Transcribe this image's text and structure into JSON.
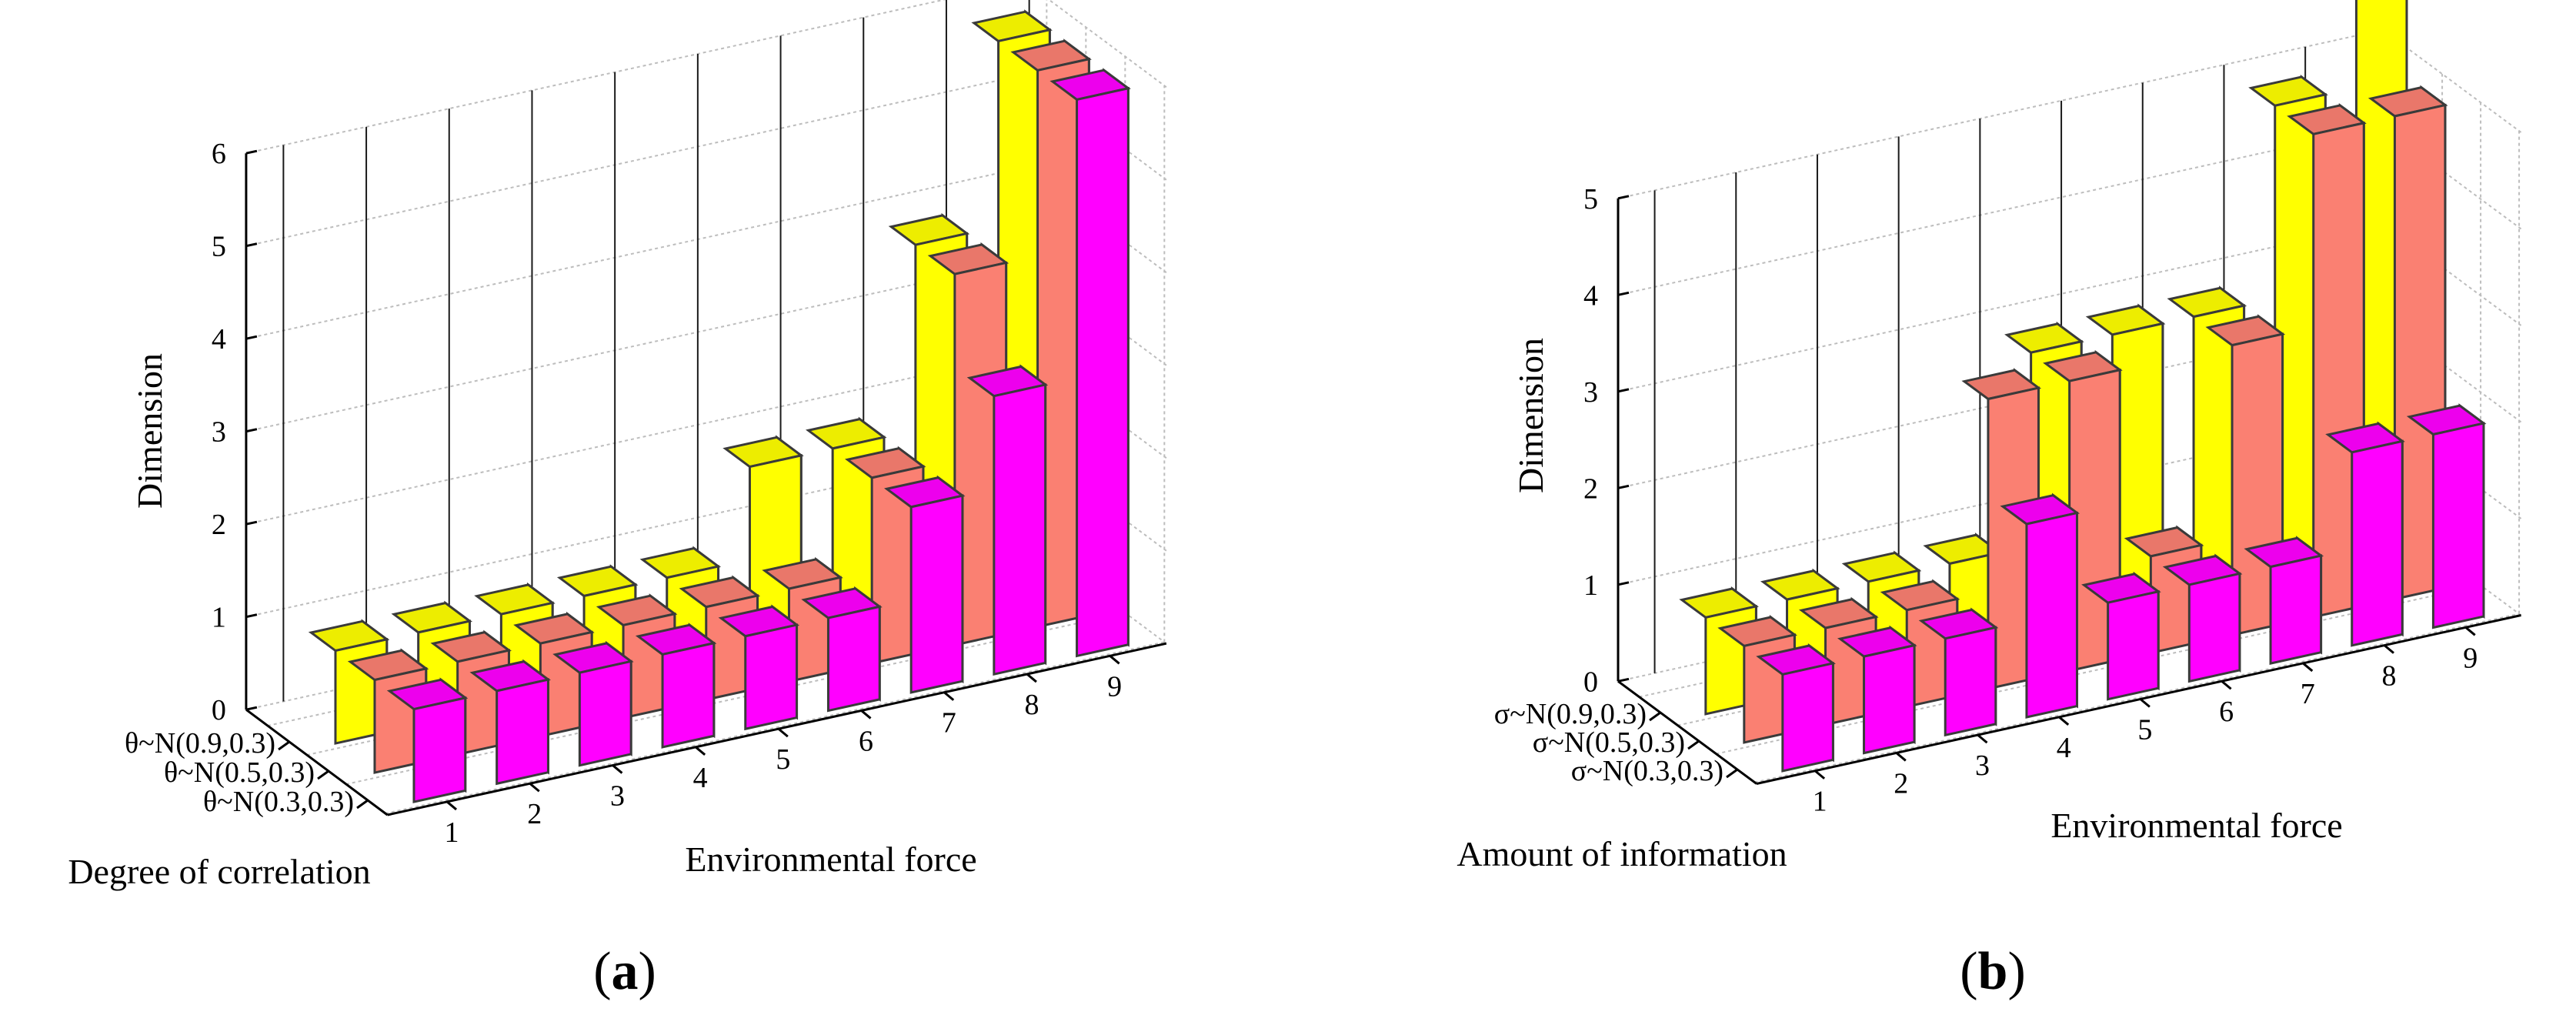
{
  "charts": [
    {
      "id": "a",
      "chart_data": {
        "type": "bar3d",
        "title": "",
        "panel_label": "a",
        "xlabel": "Environmental force",
        "ylabel": "Degree of correlation",
        "zlabel": "Dimension",
        "categories": [
          "1",
          "2",
          "3",
          "4",
          "5",
          "6",
          "7",
          "8",
          "9"
        ],
        "zticks": [
          "0",
          "1",
          "2",
          "3",
          "4",
          "5",
          "6"
        ],
        "zlim": [
          0,
          6
        ],
        "series": [
          {
            "name": "θ~N(0.9,0.3)",
            "color": "#ffff00",
            "values": [
              1,
              1,
              1,
              1,
              1,
              2,
              2,
              4,
              6
            ]
          },
          {
            "name": "θ~N(0.5,0.3)",
            "color": "#fa8072",
            "values": [
              1,
              1,
              1,
              1,
              1,
              1,
              2,
              4,
              6
            ]
          },
          {
            "name": "θ~N(0.3,0.3)",
            "color": "#ff00ff",
            "values": [
              1,
              1,
              1,
              1,
              1,
              1,
              2,
              3,
              6
            ]
          }
        ]
      }
    },
    {
      "id": "b",
      "chart_data": {
        "type": "bar3d",
        "title": "",
        "panel_label": "b",
        "xlabel": "Environmental force",
        "ylabel": "Amount of information",
        "zlabel": "Dimension",
        "categories": [
          "1",
          "2",
          "3",
          "4",
          "5",
          "6",
          "7",
          "8",
          "9"
        ],
        "zticks": [
          "0",
          "1",
          "2",
          "3",
          "4",
          "5"
        ],
        "zlim": [
          0,
          5
        ],
        "series": [
          {
            "name": "σ~N(0.9,0.3)",
            "color": "#ffff00",
            "values": [
              1,
              1,
              1,
              1,
              3,
              3,
              3,
              5,
              6
            ]
          },
          {
            "name": "σ~N(0.5,0.3)",
            "color": "#fa8072",
            "values": [
              1,
              1,
              1,
              3,
              3,
              1,
              3,
              5,
              5
            ]
          },
          {
            "name": "σ~N(0.3,0.3)",
            "color": "#ff00ff",
            "values": [
              1,
              1,
              1,
              2,
              1,
              1,
              1,
              2,
              2
            ]
          }
        ]
      }
    }
  ]
}
